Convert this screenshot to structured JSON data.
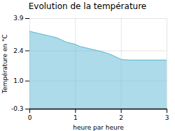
{
  "chart_data": {
    "type": "area",
    "title": "Evolution de la température",
    "xlabel": "heure par heure",
    "ylabel": "Température en °C",
    "x": [
      0,
      0.1,
      0.2,
      0.3,
      0.4,
      0.5,
      0.6,
      0.7,
      0.8,
      0.9,
      1.0,
      1.1,
      1.2,
      1.3,
      1.4,
      1.5,
      1.6,
      1.7,
      1.8,
      1.9,
      2.0,
      2.1,
      2.2,
      2.3,
      2.4,
      2.5,
      2.6,
      2.7,
      2.8,
      2.9,
      3.0
    ],
    "values": [
      3.3,
      3.25,
      3.2,
      3.15,
      3.1,
      3.05,
      3.0,
      2.9,
      2.8,
      2.75,
      2.7,
      2.6,
      2.55,
      2.5,
      2.45,
      2.4,
      2.35,
      2.28,
      2.2,
      2.1,
      2.0,
      1.98,
      1.97,
      1.97,
      1.97,
      1.97,
      1.97,
      1.97,
      1.97,
      1.97,
      1.97
    ],
    "color": "#5bb8d4",
    "xlim": [
      0,
      3
    ],
    "ylim": [
      -0.3,
      3.9
    ],
    "xticks": [
      0,
      1,
      2,
      3
    ],
    "yticks": [
      -0.3,
      {
        "value": 1.0,
        "label": "1.0"
      },
      2.4,
      3.9
    ],
    "grid": true
  }
}
